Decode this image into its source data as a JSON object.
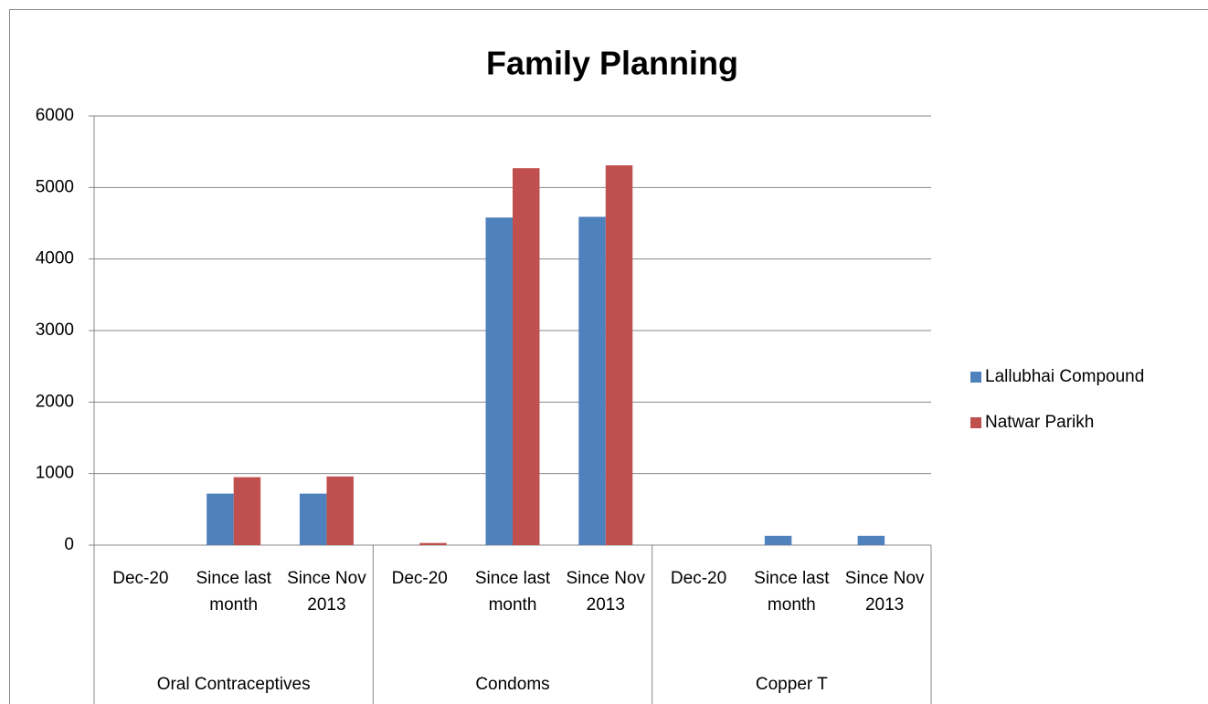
{
  "chart_data": {
    "type": "bar",
    "title": "Family Planning",
    "categories": [
      "Dec-20",
      "Since last month",
      "Since Nov 2013",
      "Dec-20",
      "Since last month",
      "Since Nov 2013",
      "Dec-20",
      "Since last month",
      "Since Nov 2013"
    ],
    "category_groups": [
      "Oral Contraceptives",
      "Condoms",
      "Copper T"
    ],
    "series": [
      {
        "name": "Lallubhai Compound",
        "color": "#4f81bd",
        "values": [
          0,
          720,
          720,
          0,
          4580,
          4590,
          0,
          130,
          130
        ]
      },
      {
        "name": "Natwar Parikh",
        "color": "#c0504d",
        "values": [
          0,
          950,
          960,
          30,
          5270,
          5310,
          0,
          0,
          0
        ]
      }
    ],
    "ylim": [
      0,
      6000
    ],
    "yticks": [
      0,
      1000,
      2000,
      3000,
      4000,
      5000,
      6000
    ],
    "grid": true,
    "legend": "right"
  }
}
